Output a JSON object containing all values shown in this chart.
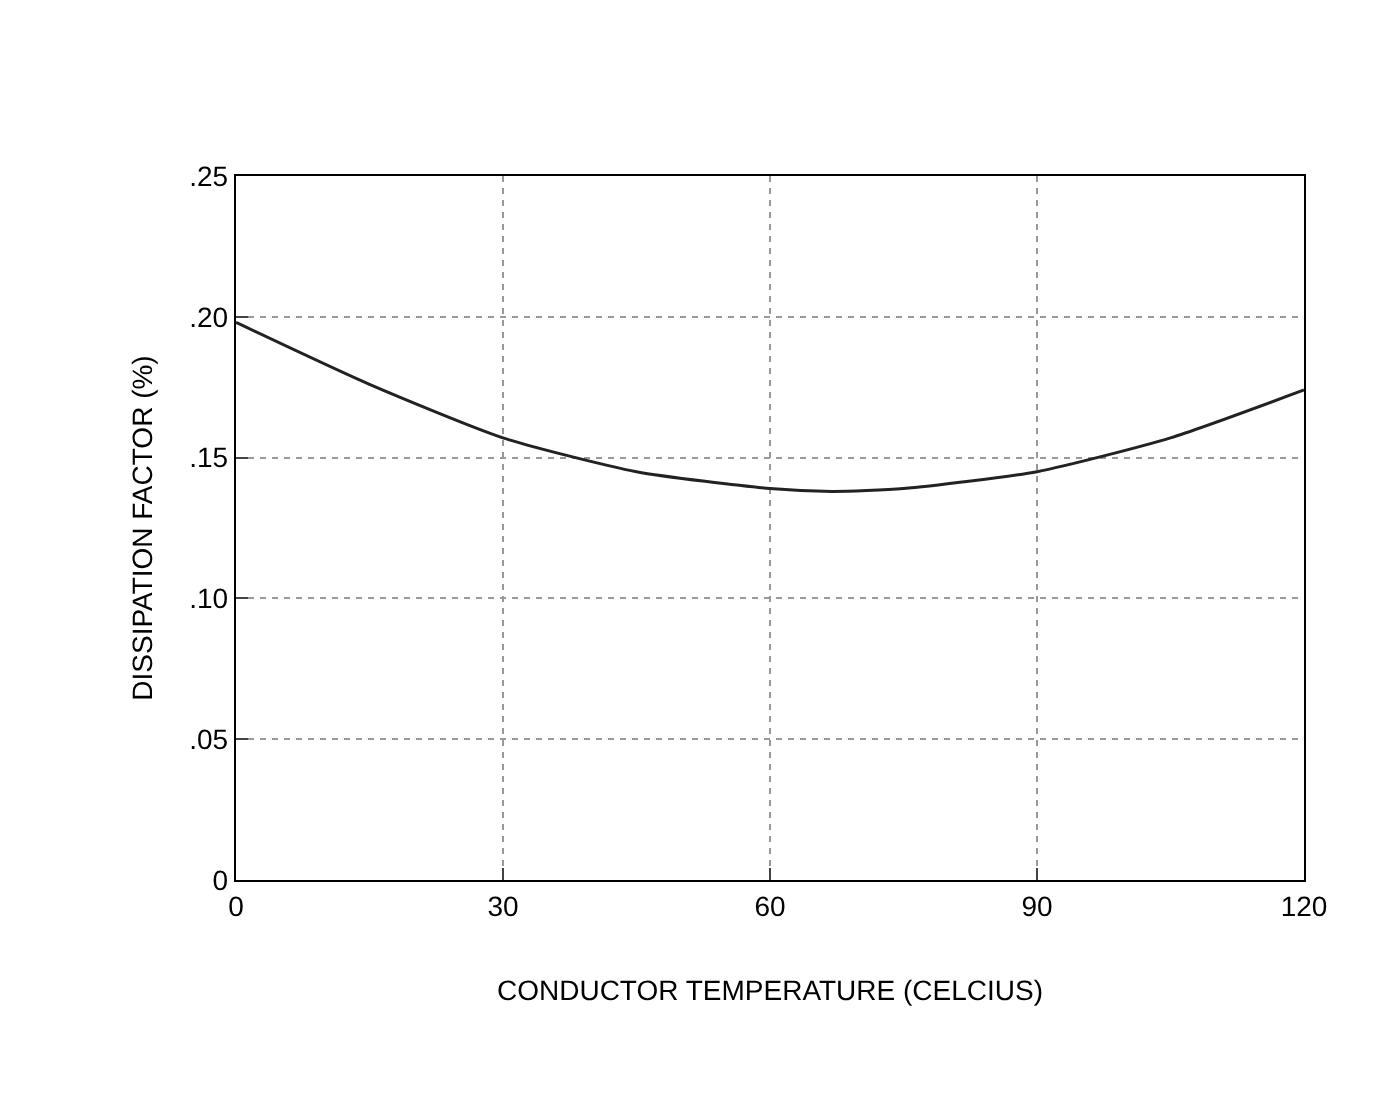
{
  "chart_data": {
    "type": "line",
    "xlabel": "CONDUCTOR TEMPERATURE (CELCIUS)",
    "ylabel": "DISSIPATION FACTOR (%)",
    "x": [
      0,
      15,
      30,
      45,
      60,
      67,
      75,
      90,
      105,
      120
    ],
    "series": [
      {
        "color": "#222222",
        "values": [
          0.198,
          0.176,
          0.157,
          0.145,
          0.139,
          0.138,
          0.139,
          0.145,
          0.157,
          0.174
        ]
      }
    ],
    "xlim": [
      0,
      120
    ],
    "xticks": [
      0,
      30,
      60,
      90,
      120
    ],
    "ylim": [
      0,
      0.25
    ],
    "yticks": [
      0,
      {
        "value": 0.05,
        "label": ".05"
      },
      {
        "value": 0.1,
        "label": ".10"
      },
      {
        "value": 0.15,
        "label": ".15"
      },
      {
        "value": 0.2,
        "label": ".20"
      },
      {
        "value": 0.25,
        "label": ".25"
      }
    ],
    "grid": true,
    "marker": "none",
    "line_style": "solid"
  }
}
